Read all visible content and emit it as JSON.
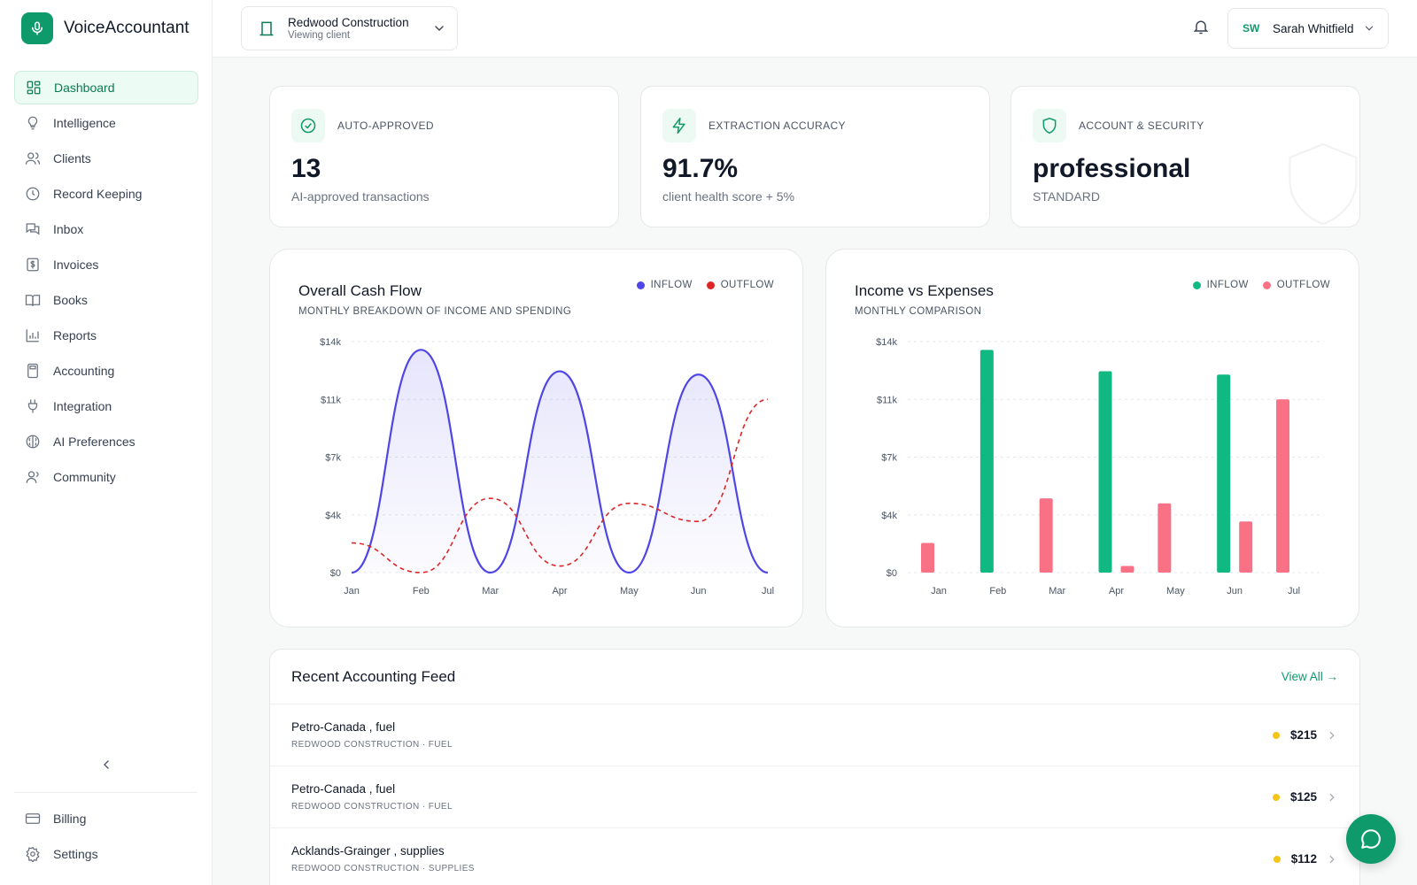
{
  "brand": {
    "name": "VoiceAccountant",
    "accent": "#0f9a6c"
  },
  "sidebar": {
    "items": [
      {
        "label": "Dashboard",
        "icon": "grid-icon",
        "active": true
      },
      {
        "label": "Intelligence",
        "icon": "lightbulb-icon"
      },
      {
        "label": "Clients",
        "icon": "users-icon"
      },
      {
        "label": "Record Keeping",
        "icon": "clock-icon"
      },
      {
        "label": "Inbox",
        "icon": "chat-icon"
      },
      {
        "label": "Invoices",
        "icon": "dollar-file-icon"
      },
      {
        "label": "Books",
        "icon": "book-icon"
      },
      {
        "label": "Reports",
        "icon": "bar-chart-icon"
      },
      {
        "label": "Accounting",
        "icon": "calculator-icon"
      },
      {
        "label": "Integration",
        "icon": "plug-icon"
      },
      {
        "label": "AI Preferences",
        "icon": "brain-icon"
      },
      {
        "label": "Community",
        "icon": "user-group-icon"
      }
    ],
    "bottom": [
      {
        "label": "Billing",
        "icon": "credit-card-icon"
      },
      {
        "label": "Settings",
        "icon": "gear-icon"
      }
    ]
  },
  "header": {
    "client_name": "Redwood Construction",
    "client_sub": "Viewing client",
    "user_initials": "SW",
    "user_name": "Sarah Whitfield"
  },
  "stats": [
    {
      "label": "AUTO-APPROVED",
      "value": "13",
      "sub": "AI-approved transactions",
      "icon": "check-circle-icon"
    },
    {
      "label": "EXTRACTION ACCURACY",
      "value": "91.7%",
      "sub": "client health score + 5%",
      "icon": "lightning-icon"
    },
    {
      "label": "ACCOUNT & SECURITY",
      "value": "professional",
      "sub": "STANDARD",
      "icon": "shield-icon"
    }
  ],
  "cashflow": {
    "title": "Overall Cash Flow",
    "subtitle": "MONTHLY BREAKDOWN OF INCOME AND SPENDING",
    "legend_in": "INFLOW",
    "legend_out": "OUTFLOW"
  },
  "income": {
    "title": "Income vs Expenses",
    "subtitle": "MONTHLY COMPARISON",
    "legend_in": "INFLOW",
    "legend_out": "OUTFLOW"
  },
  "chart_data": [
    {
      "type": "line",
      "title": "Overall Cash Flow",
      "subtitle": "MONTHLY BREAKDOWN OF INCOME AND SPENDING",
      "categories": [
        "Jan",
        "Feb",
        "Mar",
        "Apr",
        "May",
        "Jun",
        "Jul"
      ],
      "y_ticks": [
        "$0",
        "$4k",
        "$7k",
        "$11k",
        "$14k"
      ],
      "ylim": [
        0,
        14000
      ],
      "series": [
        {
          "name": "INFLOW",
          "color": "#4f46e5",
          "values": [
            0,
            13500,
            0,
            12200,
            0,
            12000,
            0
          ]
        },
        {
          "name": "OUTFLOW",
          "color": "#dc2626",
          "values": [
            1800,
            0,
            4500,
            400,
            4200,
            3100,
            10500
          ]
        }
      ],
      "legend": "top-right",
      "grid": true
    },
    {
      "type": "bar",
      "title": "Income vs Expenses",
      "subtitle": "MONTHLY COMPARISON",
      "categories": [
        "Jan",
        "Feb",
        "Mar",
        "Apr",
        "May",
        "Jun",
        "Jul"
      ],
      "y_ticks": [
        "$0",
        "$4k",
        "$7k",
        "$11k",
        "$14k"
      ],
      "ylim": [
        0,
        14000
      ],
      "series": [
        {
          "name": "INFLOW",
          "color": "#10b981",
          "values": [
            0,
            13500,
            0,
            12200,
            0,
            12000,
            0
          ]
        },
        {
          "name": "OUTFLOW",
          "color": "#f87185",
          "values": [
            1800,
            0,
            4500,
            400,
            4200,
            3100,
            10500
          ]
        }
      ],
      "legend": "top-right",
      "grid": true
    }
  ],
  "feed": {
    "title": "Recent Accounting Feed",
    "view_all": "View All →",
    "rows": [
      {
        "name": "Petro-Canada , fuel",
        "meta": "REDWOOD CONSTRUCTION · FUEL",
        "amount": "$215"
      },
      {
        "name": "Petro-Canada , fuel",
        "meta": "REDWOOD CONSTRUCTION · FUEL",
        "amount": "$125"
      },
      {
        "name": "Acklands-Grainger , supplies",
        "meta": "REDWOOD CONSTRUCTION · SUPPLIES",
        "amount": "$112"
      }
    ]
  }
}
